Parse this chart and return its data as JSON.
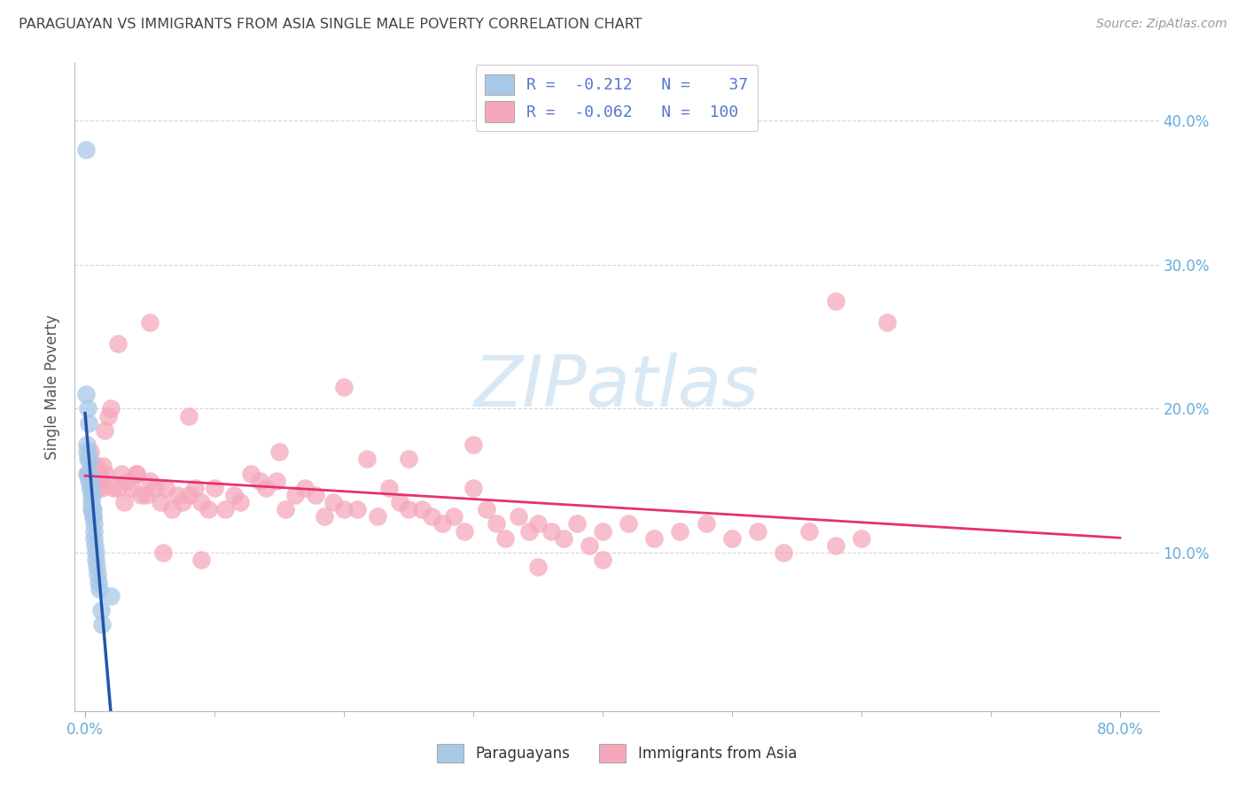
{
  "title": "PARAGUAYAN VS IMMIGRANTS FROM ASIA SINGLE MALE POVERTY CORRELATION CHART",
  "source": "Source: ZipAtlas.com",
  "ylabel": "Single Male Poverty",
  "paraguayan_color": "#a8c8e8",
  "asia_color": "#f5a8bc",
  "trendline_para_color": "#2255aa",
  "trendline_para_dashed_color": "#88aad8",
  "trendline_asia_color": "#e83070",
  "background_color": "#ffffff",
  "grid_color": "#cccccc",
  "tick_color": "#66aadd",
  "title_color": "#444444",
  "source_color": "#999999",
  "legend_text_color": "#333333",
  "legend_r_color": "#5577cc",
  "legend_n_color": "#5577cc",
  "watermark_color": "#d8e8f5",
  "para_r": -0.212,
  "para_n": 37,
  "asia_r": -0.062,
  "asia_n": 100,
  "xlim_min": -0.008,
  "xlim_max": 0.83,
  "ylim_min": -0.01,
  "ylim_max": 0.44,
  "ytick_values": [
    0.1,
    0.2,
    0.3,
    0.4
  ],
  "para_x": [
    0.0008,
    0.001,
    0.0012,
    0.0015,
    0.0018,
    0.002,
    0.0022,
    0.0025,
    0.0028,
    0.003,
    0.0032,
    0.0035,
    0.0038,
    0.004,
    0.0042,
    0.0045,
    0.0048,
    0.005,
    0.0052,
    0.0055,
    0.0058,
    0.006,
    0.0062,
    0.0065,
    0.0068,
    0.007,
    0.0075,
    0.008,
    0.0085,
    0.009,
    0.0095,
    0.01,
    0.011,
    0.012,
    0.013,
    0.02,
    0.0015
  ],
  "para_y": [
    0.38,
    0.21,
    0.175,
    0.17,
    0.165,
    0.2,
    0.155,
    0.19,
    0.155,
    0.15,
    0.165,
    0.155,
    0.145,
    0.15,
    0.145,
    0.14,
    0.135,
    0.13,
    0.14,
    0.13,
    0.125,
    0.13,
    0.125,
    0.12,
    0.115,
    0.11,
    0.105,
    0.1,
    0.095,
    0.09,
    0.085,
    0.08,
    0.075,
    0.06,
    0.05,
    0.07,
    0.155
  ],
  "asia_x": [
    0.002,
    0.003,
    0.004,
    0.005,
    0.006,
    0.006,
    0.007,
    0.008,
    0.009,
    0.01,
    0.011,
    0.012,
    0.013,
    0.014,
    0.015,
    0.016,
    0.018,
    0.02,
    0.022,
    0.025,
    0.028,
    0.03,
    0.033,
    0.036,
    0.04,
    0.043,
    0.047,
    0.05,
    0.054,
    0.058,
    0.062,
    0.067,
    0.071,
    0.075,
    0.08,
    0.085,
    0.09,
    0.095,
    0.1,
    0.108,
    0.115,
    0.12,
    0.128,
    0.135,
    0.14,
    0.148,
    0.155,
    0.162,
    0.17,
    0.178,
    0.185,
    0.192,
    0.2,
    0.21,
    0.218,
    0.226,
    0.235,
    0.243,
    0.25,
    0.26,
    0.268,
    0.276,
    0.285,
    0.293,
    0.3,
    0.31,
    0.318,
    0.325,
    0.335,
    0.343,
    0.35,
    0.36,
    0.37,
    0.38,
    0.39,
    0.4,
    0.42,
    0.44,
    0.46,
    0.48,
    0.5,
    0.52,
    0.54,
    0.56,
    0.58,
    0.6,
    0.025,
    0.05,
    0.08,
    0.15,
    0.2,
    0.25,
    0.3,
    0.04,
    0.06,
    0.09,
    0.35,
    0.4,
    0.58,
    0.62
  ],
  "asia_y": [
    0.155,
    0.165,
    0.17,
    0.155,
    0.16,
    0.145,
    0.155,
    0.15,
    0.16,
    0.145,
    0.155,
    0.15,
    0.145,
    0.16,
    0.185,
    0.155,
    0.195,
    0.2,
    0.145,
    0.145,
    0.155,
    0.135,
    0.15,
    0.145,
    0.155,
    0.14,
    0.14,
    0.15,
    0.145,
    0.135,
    0.145,
    0.13,
    0.14,
    0.135,
    0.14,
    0.145,
    0.135,
    0.13,
    0.145,
    0.13,
    0.14,
    0.135,
    0.155,
    0.15,
    0.145,
    0.15,
    0.13,
    0.14,
    0.145,
    0.14,
    0.125,
    0.135,
    0.13,
    0.13,
    0.165,
    0.125,
    0.145,
    0.135,
    0.13,
    0.13,
    0.125,
    0.12,
    0.125,
    0.115,
    0.145,
    0.13,
    0.12,
    0.11,
    0.125,
    0.115,
    0.12,
    0.115,
    0.11,
    0.12,
    0.105,
    0.115,
    0.12,
    0.11,
    0.115,
    0.12,
    0.11,
    0.115,
    0.1,
    0.115,
    0.105,
    0.11,
    0.245,
    0.26,
    0.195,
    0.17,
    0.215,
    0.165,
    0.175,
    0.155,
    0.1,
    0.095,
    0.09,
    0.095,
    0.275,
    0.26
  ]
}
